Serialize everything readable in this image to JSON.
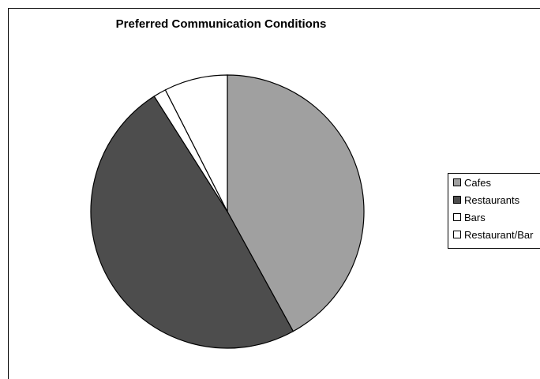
{
  "chart_data": {
    "type": "pie",
    "title": "Preferred Communication Conditions",
    "slices": [
      {
        "label": "Cafes",
        "value": 42,
        "color": "#a0a0a0"
      },
      {
        "label": "Restaurants",
        "value": 49,
        "color": "#4d4d4d"
      },
      {
        "label": "Bars",
        "value": 1.5,
        "color": "#ffffff"
      },
      {
        "label": "Restaurant/Bar",
        "value": 7.5,
        "color": "#ffffff"
      }
    ],
    "legend_position": "right",
    "start_angle": "12 o'clock",
    "direction": "clockwise"
  }
}
